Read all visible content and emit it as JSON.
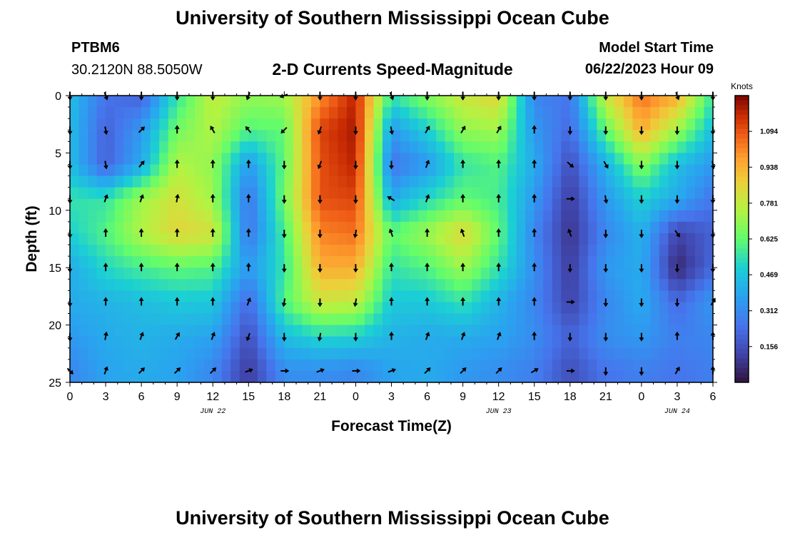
{
  "header": {
    "title": "University of Southern Mississippi Ocean Cube",
    "station": "PTBM6",
    "coords": "30.2120N  88.5050W",
    "subtitle": "2-D Currents Speed-Magnitude",
    "model_label": "Model Start Time",
    "model_time": "06/22/2023 Hour 09"
  },
  "footer": {
    "title": "University of Southern Mississippi Ocean Cube"
  },
  "chart_data": {
    "type": "heatmap",
    "title": "2-D Currents Speed-Magnitude",
    "xlabel": "Forecast Time(Z)",
    "ylabel": "Depth (ft)",
    "x_ticks": [
      "0",
      "3",
      "6",
      "9",
      "12",
      "15",
      "18",
      "21",
      "0",
      "3",
      "6",
      "9",
      "12",
      "15",
      "18",
      "21",
      "0",
      "3",
      "6"
    ],
    "x_range": [
      0,
      54
    ],
    "y_ticks": [
      0,
      5,
      10,
      15,
      20,
      25
    ],
    "y_range": [
      0,
      25
    ],
    "date_labels": [
      {
        "label": "JUN 22",
        "x": 12
      },
      {
        "label": "JUN 23",
        "x": 36
      },
      {
        "label": "JUN 24",
        "x": 51
      }
    ],
    "colorbar": {
      "label": "Knots",
      "ticks": [
        "1.094",
        "0.938",
        "0.781",
        "0.625",
        "0.469",
        "0.312",
        "0.156"
      ],
      "range": [
        0,
        1.25
      ]
    },
    "grid_depths": [
      0,
      3,
      6,
      9,
      12,
      15,
      18,
      21,
      24
    ],
    "grid_hours": [
      0,
      3,
      6,
      9,
      12,
      15,
      18,
      21,
      24,
      27,
      30,
      33,
      36,
      39,
      42,
      45,
      48,
      51,
      54
    ],
    "speed_knots": [
      [
        0.45,
        0.25,
        0.2,
        0.55,
        0.78,
        0.7,
        0.72,
        1.0,
        1.18,
        0.55,
        0.68,
        0.8,
        0.85,
        0.3,
        0.25,
        0.8,
        1.05,
        0.95,
        0.55
      ],
      [
        0.45,
        0.2,
        0.35,
        0.65,
        0.75,
        0.6,
        0.62,
        1.12,
        1.2,
        0.35,
        0.5,
        0.7,
        0.72,
        0.35,
        0.22,
        0.62,
        0.95,
        0.72,
        0.45
      ],
      [
        0.45,
        0.2,
        0.4,
        0.75,
        0.7,
        0.35,
        0.62,
        1.1,
        1.18,
        0.25,
        0.35,
        0.55,
        0.6,
        0.4,
        0.15,
        0.42,
        0.68,
        0.45,
        0.35
      ],
      [
        0.55,
        0.55,
        0.72,
        0.82,
        0.72,
        0.25,
        0.65,
        1.1,
        1.12,
        0.4,
        0.52,
        0.62,
        0.58,
        0.35,
        0.1,
        0.35,
        0.5,
        0.4,
        0.25
      ],
      [
        0.5,
        0.6,
        0.75,
        0.85,
        0.82,
        0.25,
        0.58,
        1.02,
        1.05,
        0.62,
        0.72,
        0.85,
        0.62,
        0.3,
        0.08,
        0.3,
        0.42,
        0.12,
        0.2
      ],
      [
        0.4,
        0.52,
        0.58,
        0.62,
        0.6,
        0.35,
        0.55,
        0.95,
        0.95,
        0.55,
        0.6,
        0.72,
        0.55,
        0.32,
        0.1,
        0.35,
        0.4,
        0.05,
        0.22
      ],
      [
        0.4,
        0.42,
        0.45,
        0.48,
        0.48,
        0.22,
        0.6,
        0.8,
        0.78,
        0.48,
        0.48,
        0.55,
        0.42,
        0.3,
        0.12,
        0.3,
        0.4,
        0.22,
        0.35
      ],
      [
        0.35,
        0.4,
        0.42,
        0.4,
        0.38,
        0.15,
        0.45,
        0.52,
        0.5,
        0.42,
        0.4,
        0.4,
        0.38,
        0.32,
        0.2,
        0.32,
        0.35,
        0.28,
        0.3
      ],
      [
        0.3,
        0.38,
        0.4,
        0.38,
        0.3,
        0.1,
        0.32,
        0.32,
        0.3,
        0.38,
        0.4,
        0.35,
        0.32,
        0.28,
        0.15,
        0.25,
        0.28,
        0.25,
        0.28
      ]
    ],
    "arrow_depths": [
      0,
      3,
      6,
      9,
      12,
      15,
      18,
      21,
      24
    ],
    "arrow_hours": [
      0,
      3,
      6,
      9,
      12,
      15,
      18,
      21,
      24,
      27,
      30,
      33,
      36,
      39,
      42,
      45,
      48,
      51,
      54
    ],
    "direction_deg": [
      [
        180,
        160,
        180,
        180,
        180,
        200,
        250,
        180,
        180,
        160,
        180,
        180,
        180,
        180,
        180,
        180,
        180,
        160,
        180
      ],
      [
        180,
        170,
        45,
        0,
        330,
        320,
        225,
        200,
        180,
        170,
        30,
        30,
        30,
        0,
        180,
        180,
        180,
        180,
        180
      ],
      [
        180,
        170,
        40,
        0,
        0,
        0,
        180,
        200,
        180,
        180,
        20,
        0,
        0,
        0,
        130,
        150,
        180,
        180,
        170
      ],
      [
        180,
        20,
        20,
        10,
        0,
        0,
        180,
        180,
        180,
        300,
        20,
        0,
        0,
        0,
        90,
        170,
        180,
        180,
        180
      ],
      [
        180,
        0,
        0,
        0,
        0,
        0,
        180,
        180,
        190,
        340,
        0,
        340,
        0,
        0,
        340,
        180,
        180,
        145,
        180
      ],
      [
        180,
        0,
        0,
        0,
        0,
        0,
        180,
        180,
        180,
        0,
        0,
        0,
        0,
        0,
        180,
        180,
        180,
        180,
        180
      ],
      [
        180,
        0,
        0,
        0,
        0,
        20,
        190,
        180,
        190,
        0,
        0,
        0,
        0,
        0,
        90,
        180,
        180,
        180,
        30
      ],
      [
        180,
        10,
        20,
        30,
        20,
        200,
        180,
        190,
        180,
        0,
        20,
        20,
        20,
        0,
        180,
        180,
        180,
        0,
        0
      ],
      [
        135,
        20,
        45,
        45,
        45,
        70,
        90,
        70,
        90,
        70,
        45,
        45,
        45,
        60,
        90,
        180,
        180,
        30,
        0
      ]
    ]
  }
}
